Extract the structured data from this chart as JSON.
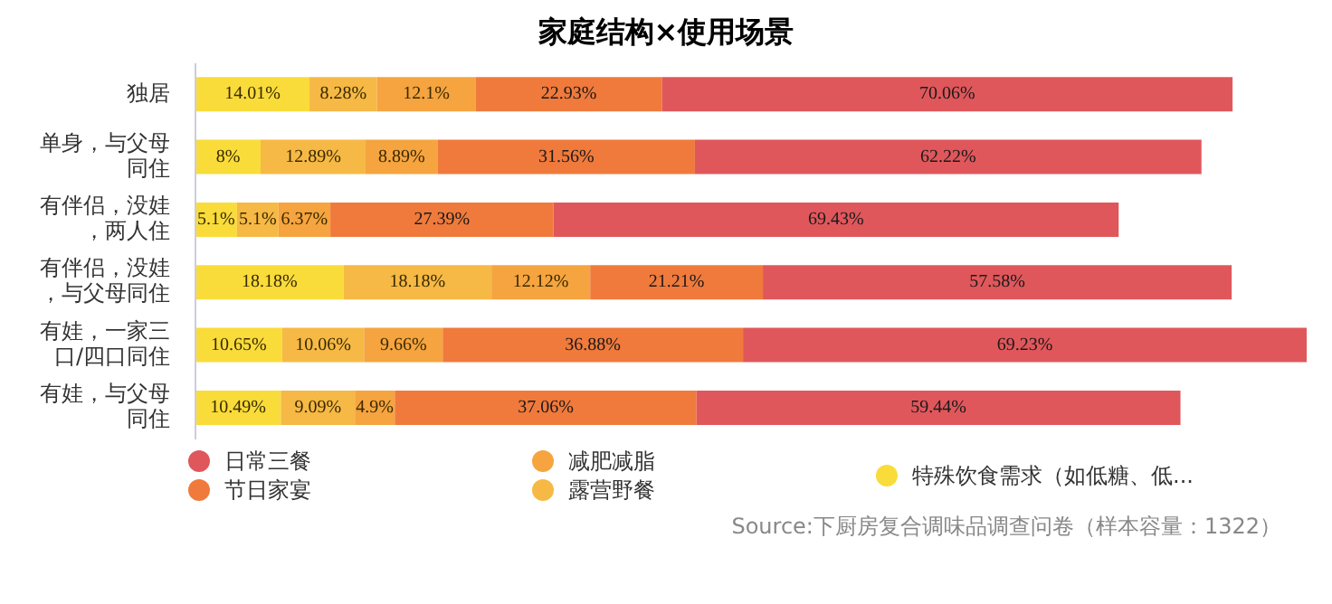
{
  "chart_data": {
    "type": "bar",
    "orientation": "horizontal",
    "stacked": true,
    "title": "家庭结构×使用场景",
    "categories": [
      "独居",
      "单身，与父母同住",
      "有伴侣，没娃，两人住",
      "有伴侣，没娃，与父母同住",
      "有娃，一家三口/四口同住",
      "有娃，与父母同住"
    ],
    "series": [
      {
        "name": "特殊饮食需求（如低糖、低...",
        "color": "#f9dc3a",
        "values": [
          14.01,
          8,
          5.1,
          18.18,
          10.65,
          10.49
        ],
        "value_labels": [
          "14.01%",
          "8%",
          "5.1%",
          "18.18%",
          "10.65%",
          "10.49%"
        ]
      },
      {
        "name": "露营野餐",
        "color": "#f6b945",
        "values": [
          8.28,
          12.89,
          5.1,
          18.18,
          10.06,
          9.09
        ],
        "value_labels": [
          "8.28%",
          "12.89%",
          "5.1%",
          "18.18%",
          "10.06%",
          "9.09%"
        ]
      },
      {
        "name": "减肥减脂",
        "color": "#f5a43f",
        "values": [
          12.1,
          8.89,
          6.37,
          12.12,
          9.66,
          4.9
        ],
        "value_labels": [
          "12.1%",
          "8.89%",
          "6.37%",
          "12.12%",
          "9.66%",
          "4.9%"
        ]
      },
      {
        "name": "节日家宴",
        "color": "#f07a3c",
        "values": [
          22.93,
          31.56,
          27.39,
          21.21,
          36.88,
          37.06
        ],
        "value_labels": [
          "22.93%",
          "31.56%",
          "27.39%",
          "21.21%",
          "36.88%",
          "37.06%"
        ]
      },
      {
        "name": "日常三餐",
        "color": "#e0575b",
        "values": [
          70.06,
          62.22,
          69.43,
          57.58,
          69.23,
          59.44
        ],
        "value_labels": [
          "70.06%",
          "62.22%",
          "69.43%",
          "57.58%",
          "69.23%",
          "59.44%"
        ]
      }
    ],
    "legend": "bottom",
    "tick_labels": "y",
    "annotations": [
      "Source:下厨房复合调味品调查问卷（样本容量：1322）"
    ]
  }
}
